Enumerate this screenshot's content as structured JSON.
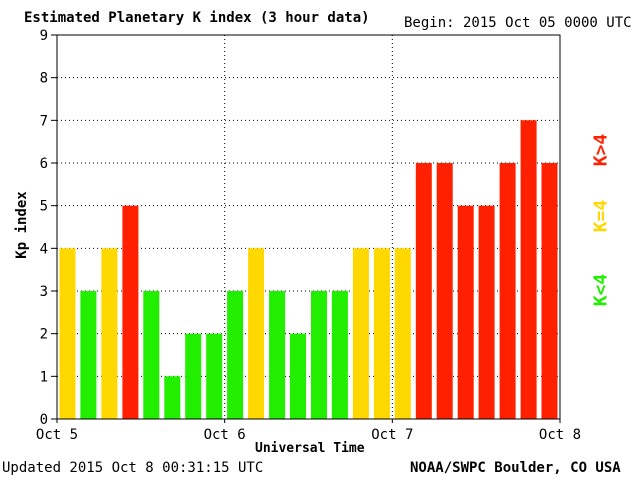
{
  "header": {
    "title": "Estimated Planetary K index (3 hour data)",
    "begin": "Begin:  2015 Oct 05 0000 UTC"
  },
  "footer": {
    "updated": "Updated 2015 Oct  8 00:31:15 UTC",
    "credit": "NOAA/SWPC Boulder, CO USA"
  },
  "legend": {
    "high": {
      "label": "K>4",
      "color": "#ff2000"
    },
    "equal": {
      "label": "K=4",
      "color": "#ffd800"
    },
    "low": {
      "label": "K<4",
      "color": "#22ee00"
    }
  },
  "chart_data": {
    "type": "bar",
    "title": "Estimated Planetary K index (3 hour data)",
    "xlabel": "Universal Time",
    "ylabel": "Kp index",
    "ylim": [
      0,
      9
    ],
    "yticks": [
      0,
      1,
      2,
      3,
      4,
      5,
      6,
      7,
      8,
      9
    ],
    "xticks": [
      "Oct 5",
      "Oct 6",
      "Oct 7",
      "Oct 8"
    ],
    "grid": true,
    "values": [
      4,
      3,
      4,
      5,
      3,
      1,
      2,
      2,
      3,
      4,
      3,
      2,
      3,
      3,
      4,
      4,
      4,
      6,
      6,
      5,
      5,
      6,
      7,
      6
    ]
  }
}
